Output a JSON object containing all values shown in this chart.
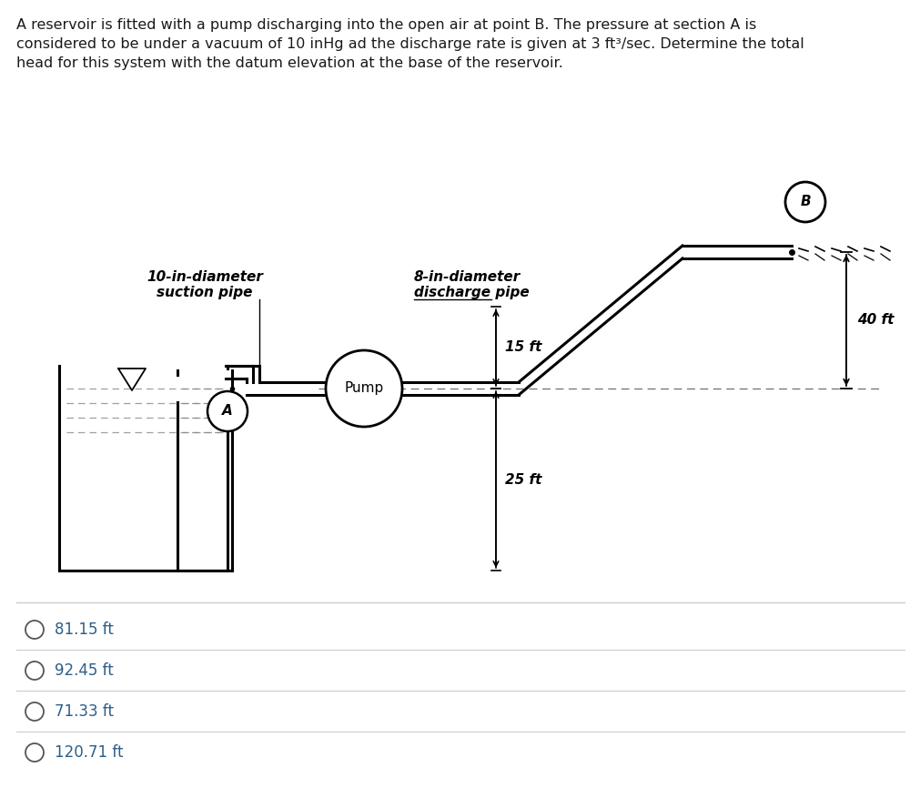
{
  "title_text": "A reservoir is fitted with a pump discharging into the open air at point B. The pressure at section A is\nconsidered to be under a vacuum of 10 inHg ad the discharge rate is given at 3 ft³/sec. Determine the total\nhead for this system with the datum elevation at the base of the reservoir.",
  "background_color": "#ffffff",
  "text_color": "#2c5f8a",
  "options": [
    "81.15 ft",
    "92.45 ft",
    "71.33 ft",
    "120.71 ft"
  ],
  "label_suction": "10-in-diameter\nsuction pipe",
  "label_discharge": "8-in-diameter\ndischarge pipe",
  "label_pump": "Pump",
  "label_B": "B",
  "label_A": "A",
  "dim_40ft": "40 ft",
  "dim_15ft": "15 ft",
  "dim_25ft": "25 ft"
}
